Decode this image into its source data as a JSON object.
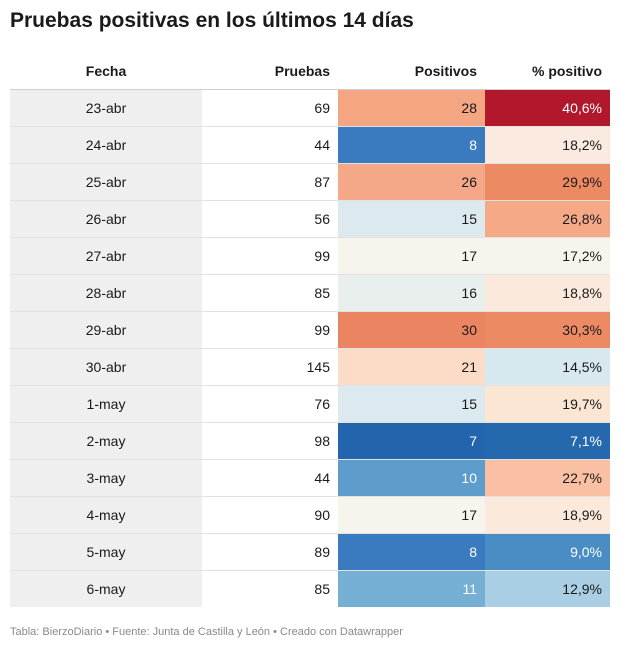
{
  "title": "Pruebas positivas en los últimos 14 días",
  "footer": "Tabla: BierzoDiario • Fuente: Junta de Castilla y León • Creado con Datawrapper",
  "chart_data": {
    "type": "table",
    "title": "Pruebas positivas en los últimos 14 días",
    "columns": [
      "Fecha",
      "Pruebas",
      "Positivos",
      "% positivo"
    ],
    "rows": [
      {
        "fecha": "23-abr",
        "pruebas": "69",
        "positivos": "28",
        "pct": "40,6%",
        "pos_color": "#f4a582",
        "pct_color": "#b2182b"
      },
      {
        "fecha": "24-abr",
        "pruebas": "44",
        "positivos": "8",
        "pct": "18,2%",
        "pos_color": "#3a7bbf",
        "pct_color": "#fbeadf"
      },
      {
        "fecha": "25-abr",
        "pruebas": "87",
        "positivos": "26",
        "pct": "29,9%",
        "pos_color": "#f5a887",
        "pct_color": "#ec8a63"
      },
      {
        "fecha": "26-abr",
        "pruebas": "56",
        "positivos": "15",
        "pct": "26,8%",
        "pos_color": "#dce9ef",
        "pct_color": "#f5a987"
      },
      {
        "fecha": "27-abr",
        "pruebas": "99",
        "positivos": "17",
        "pct": "17,2%",
        "pos_color": "#f6f4ec",
        "pct_color": "#f6f4ec"
      },
      {
        "fecha": "28-abr",
        "pruebas": "85",
        "positivos": "16",
        "pct": "18,8%",
        "pos_color": "#e8efed",
        "pct_color": "#fae9dc"
      },
      {
        "fecha": "29-abr",
        "pruebas": "99",
        "positivos": "30",
        "pct": "30,3%",
        "pos_color": "#eb8460",
        "pct_color": "#ec8a63"
      },
      {
        "fecha": "30-abr",
        "pruebas": "145",
        "positivos": "21",
        "pct": "14,5%",
        "pos_color": "#fcdcc7",
        "pct_color": "#d8e8ef"
      },
      {
        "fecha": "1-may",
        "pruebas": "76",
        "positivos": "15",
        "pct": "19,7%",
        "pos_color": "#dce9ef",
        "pct_color": "#fbe5d3"
      },
      {
        "fecha": "2-may",
        "pruebas": "98",
        "positivos": "7",
        "pct": "7,1%",
        "pos_color": "#2265ac",
        "pct_color": "#2468ae"
      },
      {
        "fecha": "3-may",
        "pruebas": "44",
        "positivos": "10",
        "pct": "22,7%",
        "pos_color": "#5e9ccb",
        "pct_color": "#fac0a3"
      },
      {
        "fecha": "4-may",
        "pruebas": "90",
        "positivos": "17",
        "pct": "18,9%",
        "pos_color": "#f6f4ec",
        "pct_color": "#fbe9dc"
      },
      {
        "fecha": "5-may",
        "pruebas": "89",
        "positivos": "8",
        "pct": "9,0%",
        "pos_color": "#3a7bbf",
        "pct_color": "#4a8cc4"
      },
      {
        "fecha": "6-may",
        "pruebas": "85",
        "positivos": "11",
        "pct": "12,9%",
        "pos_color": "#76afd4",
        "pct_color": "#aacfe4"
      }
    ]
  }
}
